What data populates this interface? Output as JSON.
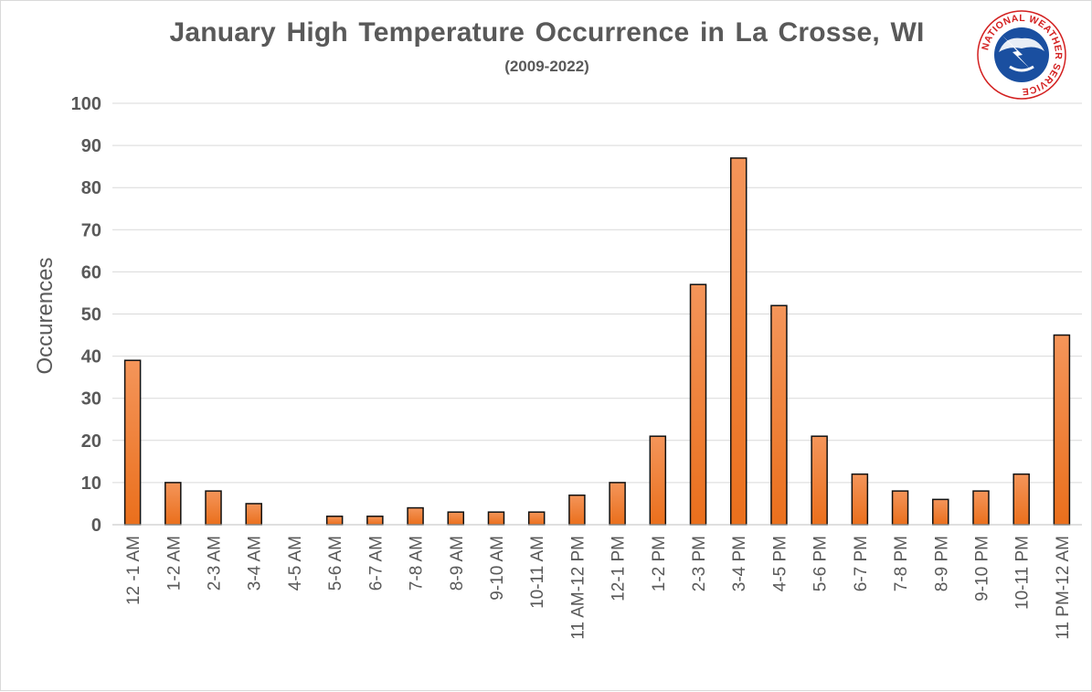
{
  "chart_data": {
    "type": "bar",
    "title": "January High Temperature Occurrence in La Crosse, WI",
    "subtitle": "(2009-2022)",
    "xlabel": "",
    "ylabel": "Occurences",
    "ylim": [
      0,
      100
    ],
    "yticks": [
      "0",
      "10",
      "20",
      "30",
      "40",
      "50",
      "60",
      "70",
      "80",
      "90",
      "100"
    ],
    "grid": true,
    "categories": [
      "12 -1 AM",
      "1-2 AM",
      "2-3 AM",
      "3-4 AM",
      "4-5 AM",
      "5-6 AM",
      "6-7 AM",
      "7-8 AM",
      "8-9 AM",
      "9-10 AM",
      "10-11 AM",
      "11 AM-12 PM",
      "12-1 PM",
      "1-2 PM",
      "2-3 PM",
      "3-4 PM",
      "4-5 PM",
      "5-6 PM",
      "6-7 PM",
      "7-8 PM",
      "8-9 PM",
      "9-10 PM",
      "10-11 PM",
      "11 PM-12 AM"
    ],
    "values": [
      39,
      10,
      8,
      5,
      0,
      2,
      2,
      4,
      3,
      3,
      3,
      7,
      10,
      21,
      57,
      87,
      52,
      21,
      12,
      8,
      6,
      8,
      12,
      45
    ],
    "bar_color": "#f07a2a"
  },
  "logo": {
    "name": "nws-logo-icon",
    "text": "NATIONAL WEATHER SERVICE"
  }
}
